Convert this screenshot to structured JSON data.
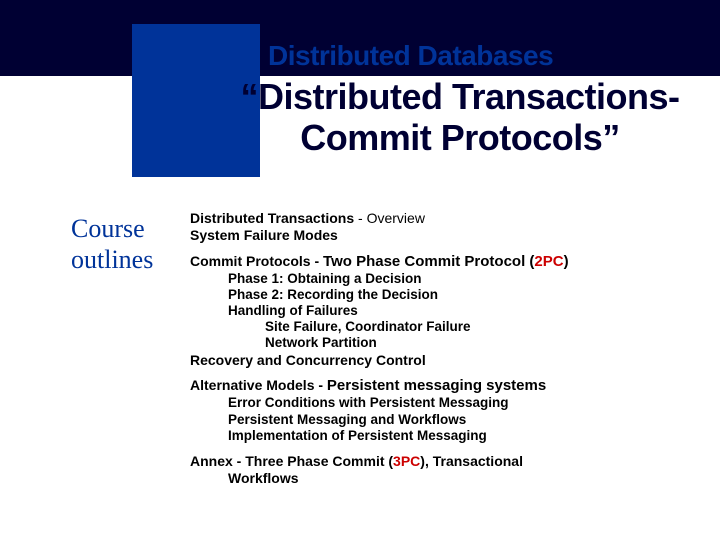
{
  "colors": {
    "banner_bg": "#000033",
    "square_bg": "#003399",
    "header_text": "#003399",
    "title_text": "#000033",
    "sidebar_text": "#003399",
    "body_text": "#000000",
    "highlight_red": "#cc0000",
    "page_bg": "#ffffff"
  },
  "header": {
    "overline": "Distributed Databases"
  },
  "title": {
    "text_open_quote": "“",
    "text_line1": "Distributed Transactions-Commit Protocols”"
  },
  "sidebar": {
    "line1": "Course",
    "line2": "outlines"
  },
  "outline": {
    "s1": {
      "l1a": "Distributed Transactions",
      "l1b": " - Overview",
      "l2": "System Failure Modes"
    },
    "s2": {
      "l1a": "Commit Protocols - ",
      "l1b": "Two Phase Commit Protocol (",
      "l1c": "2PC",
      "l1d": ")",
      "l2": "Phase 1: Obtaining a Decision",
      "l3": "Phase 2: Recording the Decision",
      "l4": "Handling of Failures",
      "l5": "Site Failure, Coordinator Failure",
      "l6": "Network Partition",
      "l7": "Recovery and Concurrency Control"
    },
    "s3": {
      "l1a": "Alternative Models - ",
      "l1b": "Persistent messaging systems",
      "l2": "Error Conditions with Persistent Messaging",
      "l3": "Persistent Messaging and Workflows",
      "l4": "Implementation of Persistent Messaging"
    },
    "s4": {
      "l1a": "Annex - Three Phase Commit (",
      "l1b": "3PC",
      "l1c": "), Transactional",
      "l2": "Workflows"
    }
  }
}
